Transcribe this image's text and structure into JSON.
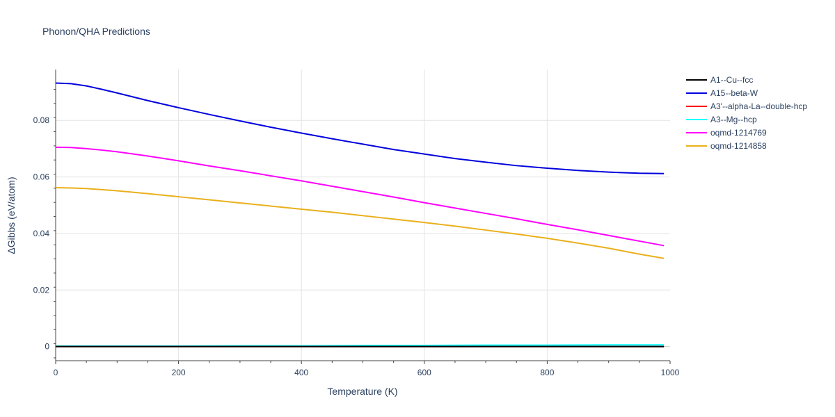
{
  "chart_data": {
    "type": "line",
    "title": "Phonon/QHA Predictions",
    "xlabel": "Temperature (K)",
    "ylabel": "ΔGibbs (eV/atom)",
    "xlim": [
      0,
      1000
    ],
    "ylim": [
      -0.005,
      0.098
    ],
    "xticks": [
      0,
      200,
      400,
      600,
      800,
      1000
    ],
    "xtick_labels": [
      "0",
      "200",
      "400",
      "600",
      "800",
      "1000"
    ],
    "yticks": [
      0,
      0.02,
      0.04,
      0.06,
      0.08
    ],
    "ytick_labels": [
      "0",
      "0.02",
      "0.04",
      "0.06",
      "0.08"
    ],
    "grid": true,
    "legend_position": "top-right",
    "series": [
      {
        "name": "A1--Cu--fcc",
        "color": "#000000",
        "x": [
          0,
          100,
          200,
          300,
          400,
          500,
          600,
          700,
          800,
          900,
          990
        ],
        "y": [
          0,
          0,
          0,
          0,
          0,
          0,
          0,
          0,
          0,
          0,
          0
        ]
      },
      {
        "name": "A15--beta-W",
        "color": "#0000dd",
        "x": [
          0,
          25,
          50,
          75,
          100,
          150,
          200,
          250,
          300,
          350,
          400,
          450,
          500,
          550,
          600,
          650,
          700,
          750,
          800,
          850,
          900,
          950,
          990
        ],
        "y": [
          0.0932,
          0.093,
          0.0922,
          0.091,
          0.0897,
          0.087,
          0.0845,
          0.0821,
          0.0798,
          0.0776,
          0.0755,
          0.0735,
          0.0716,
          0.0697,
          0.0681,
          0.0665,
          0.0652,
          0.064,
          0.0631,
          0.0623,
          0.0617,
          0.0613,
          0.0612
        ]
      },
      {
        "name": "A3'--alpha-La--double-hcp",
        "color": "#ff0000",
        "x": [
          0,
          100,
          200,
          300,
          400,
          500,
          600,
          700,
          800,
          900,
          990
        ],
        "y": [
          0,
          0,
          0,
          0,
          0,
          0,
          0,
          0,
          0,
          0,
          0
        ]
      },
      {
        "name": "A3--Mg--hcp",
        "color": "#00ffff",
        "x": [
          0,
          100,
          200,
          300,
          400,
          500,
          600,
          700,
          800,
          900,
          990
        ],
        "y": [
          0.0002,
          0.0002,
          0.0002,
          0.0003,
          0.0003,
          0.0004,
          0.0004,
          0.0005,
          0.0005,
          0.0006,
          0.0006
        ]
      },
      {
        "name": "oqmd-1214769",
        "color": "#ff00ff",
        "x": [
          0,
          25,
          50,
          75,
          100,
          150,
          200,
          250,
          300,
          350,
          400,
          450,
          500,
          550,
          600,
          650,
          700,
          750,
          800,
          850,
          900,
          950,
          990
        ],
        "y": [
          0.0705,
          0.0704,
          0.07,
          0.0695,
          0.0689,
          0.0674,
          0.0657,
          0.0639,
          0.0622,
          0.0604,
          0.0586,
          0.0567,
          0.0548,
          0.0529,
          0.0509,
          0.049,
          0.0471,
          0.0452,
          0.0432,
          0.0413,
          0.0393,
          0.0373,
          0.0357
        ]
      },
      {
        "name": "oqmd-1214858",
        "color": "#eab01c",
        "x": [
          0,
          25,
          50,
          75,
          100,
          150,
          200,
          250,
          300,
          350,
          400,
          450,
          500,
          550,
          600,
          650,
          700,
          750,
          800,
          850,
          900,
          950,
          990
        ],
        "y": [
          0.0562,
          0.0561,
          0.0559,
          0.0555,
          0.0551,
          0.0541,
          0.053,
          0.0519,
          0.0508,
          0.0497,
          0.0486,
          0.0475,
          0.0463,
          0.0451,
          0.0439,
          0.0426,
          0.0412,
          0.0398,
          0.0383,
          0.0366,
          0.0348,
          0.0327,
          0.0312
        ]
      }
    ]
  }
}
